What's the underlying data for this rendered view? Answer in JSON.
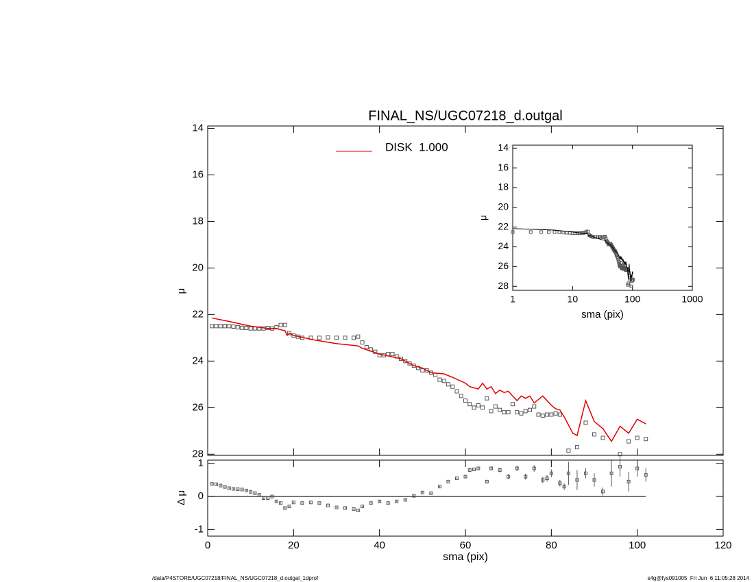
{
  "chart_data": [
    {
      "type": "scatter",
      "title": "FINAL_NS/UGC07218_d.outgal",
      "ylabel": "μ",
      "xlim": [
        0,
        120
      ],
      "xticks": [
        0,
        20,
        40,
        60,
        80,
        100,
        120
      ],
      "ylim": [
        13.9,
        28.05
      ],
      "yticks": [
        14,
        16,
        18,
        20,
        22,
        24,
        26,
        28
      ],
      "yreversed": true,
      "legend": "top",
      "series": [
        {
          "marker": "square",
          "color": "#555555",
          "x": [
            1,
            2,
            3,
            4,
            5,
            6,
            7,
            8,
            9,
            10,
            11,
            12,
            13,
            14,
            15,
            16,
            17,
            18,
            19,
            20,
            21,
            22,
            24,
            26,
            28,
            30,
            32,
            34,
            35,
            36,
            37,
            38,
            39,
            40,
            41,
            42,
            43,
            44,
            45,
            46,
            47,
            48,
            49,
            50,
            51,
            52,
            53,
            54,
            55,
            56,
            57,
            58,
            59,
            60,
            61,
            62,
            63,
            64,
            65,
            66,
            67,
            68,
            69,
            70,
            71,
            72,
            73,
            74,
            75,
            76,
            77,
            78,
            79,
            80,
            81,
            82,
            84,
            86,
            88,
            90,
            92,
            96,
            98,
            100,
            102
          ],
          "values": [
            22.5,
            22.5,
            22.5,
            22.5,
            22.5,
            22.52,
            22.55,
            22.57,
            22.58,
            22.6,
            22.6,
            22.6,
            22.6,
            22.58,
            22.6,
            22.55,
            22.45,
            22.45,
            22.8,
            22.9,
            22.95,
            23.0,
            23.0,
            23.0,
            22.98,
            23.0,
            23.0,
            23.0,
            22.95,
            23.2,
            23.4,
            23.5,
            23.6,
            23.75,
            23.75,
            23.7,
            23.7,
            23.8,
            23.9,
            24.0,
            24.1,
            24.2,
            24.3,
            24.4,
            24.4,
            24.5,
            24.6,
            24.8,
            24.85,
            25.0,
            25.1,
            25.3,
            25.5,
            25.7,
            25.85,
            26.0,
            25.9,
            26.0,
            25.6,
            26.15,
            25.95,
            26.1,
            26.2,
            26.2,
            25.85,
            26.2,
            26.25,
            26.15,
            26.1,
            25.95,
            26.3,
            26.35,
            26.3,
            26.3,
            26.25,
            26.3,
            27.85,
            27.7,
            26.65,
            27.15,
            27.3,
            28.0,
            27.45,
            27.3,
            27.35
          ]
        },
        {
          "name": "DISK  1.000",
          "marker": "line",
          "color": "#e00000",
          "x": [
            1,
            5,
            10,
            14,
            16,
            18,
            18.5,
            19,
            20,
            25,
            30,
            35,
            36,
            40,
            45,
            48,
            50,
            52,
            55,
            57,
            60,
            61,
            63,
            64,
            65,
            66,
            67,
            68,
            69,
            70,
            72,
            73,
            74,
            75,
            76,
            78,
            80,
            81,
            82,
            83,
            85,
            86,
            88,
            90,
            92,
            94,
            96,
            98,
            100,
            102
          ],
          "values": [
            22.15,
            22.3,
            22.5,
            22.6,
            22.6,
            22.7,
            22.9,
            22.8,
            22.9,
            23.1,
            23.25,
            23.35,
            23.45,
            23.7,
            23.9,
            24.2,
            24.3,
            24.5,
            24.55,
            24.7,
            24.95,
            25.1,
            25.2,
            24.95,
            25.2,
            25.1,
            25.4,
            25.25,
            25.35,
            25.3,
            25.7,
            25.5,
            25.6,
            25.5,
            25.8,
            25.5,
            25.9,
            26.05,
            26.1,
            26.4,
            27.1,
            27.2,
            25.7,
            26.6,
            26.9,
            27.45,
            26.8,
            27.1,
            26.5,
            26.7
          ]
        }
      ]
    },
    {
      "type": "errorbar",
      "ylabel": "Δ μ",
      "xlabel": "sma (pix)",
      "xlim": [
        0,
        120
      ],
      "xticks": [
        0,
        20,
        40,
        60,
        80,
        100,
        120
      ],
      "ylim": [
        -1.2,
        1.1
      ],
      "yticks": [
        -1,
        0,
        1
      ],
      "color": "#555555",
      "x": [
        1,
        2,
        3,
        4,
        5,
        6,
        7,
        8,
        9,
        10,
        11,
        12,
        13,
        14,
        15,
        16,
        17,
        18,
        19,
        20,
        22,
        24,
        26,
        28,
        30,
        32,
        34,
        35,
        36,
        38,
        40,
        42,
        44,
        46,
        48,
        50,
        52,
        54,
        56,
        58,
        60,
        61,
        62,
        63,
        65,
        66,
        68,
        70,
        72,
        74,
        76,
        78,
        79,
        80,
        82,
        83,
        84,
        86,
        88,
        90,
        92,
        94,
        96,
        98,
        100,
        102
      ],
      "values": [
        0.38,
        0.37,
        0.33,
        0.29,
        0.25,
        0.23,
        0.22,
        0.21,
        0.18,
        0.14,
        0.1,
        0.05,
        -0.05,
        -0.05,
        0.0,
        -0.15,
        -0.2,
        -0.35,
        -0.3,
        -0.18,
        -0.2,
        -0.18,
        -0.2,
        -0.27,
        -0.33,
        -0.35,
        -0.38,
        -0.42,
        -0.3,
        -0.2,
        -0.15,
        -0.2,
        -0.15,
        -0.1,
        0.02,
        0.12,
        0.1,
        0.3,
        0.45,
        0.55,
        0.6,
        0.8,
        0.82,
        0.85,
        0.45,
        0.85,
        0.8,
        0.6,
        0.85,
        0.6,
        0.85,
        0.5,
        0.55,
        0.7,
        0.4,
        0.3,
        0.7,
        0.5,
        0.7,
        0.5,
        0.15,
        0.7,
        0.9,
        0.45,
        0.85,
        0.65
      ],
      "errors": [
        0.02,
        0.02,
        0.02,
        0.02,
        0.02,
        0.02,
        0.02,
        0.02,
        0.02,
        0.02,
        0.02,
        0.02,
        0.02,
        0.02,
        0.02,
        0.02,
        0.02,
        0.02,
        0.02,
        0.02,
        0.02,
        0.02,
        0.02,
        0.02,
        0.02,
        0.02,
        0.02,
        0.02,
        0.02,
        0.02,
        0.02,
        0.02,
        0.02,
        0.02,
        0.02,
        0.02,
        0.02,
        0.02,
        0.02,
        0.02,
        0.04,
        0.05,
        0.05,
        0.05,
        0.05,
        0.06,
        0.07,
        0.08,
        0.08,
        0.09,
        0.1,
        0.1,
        0.1,
        0.12,
        0.1,
        0.1,
        0.35,
        0.3,
        0.15,
        0.2,
        0.12,
        0.4,
        0.3,
        0.3,
        0.25,
        0.2
      ]
    },
    {
      "type": "inset",
      "xlabel": "sma (pix)",
      "ylabel": "μ",
      "xlog": true,
      "xlim": [
        1,
        1000
      ],
      "xticks": [
        1,
        10,
        100,
        1000
      ],
      "ylim": [
        13.7,
        28.4
      ],
      "yticks": [
        14,
        16,
        18,
        20,
        22,
        24,
        26,
        28
      ],
      "yreversed": true,
      "color": "#000000"
    }
  ],
  "footer": {
    "left": "/data/P4STORE/UGC07218/FINAL_NS/UGC07218_d.outgal_1dprof",
    "right": "s4g@fys091005  Fri Jun  6 11:05:28 2014"
  }
}
